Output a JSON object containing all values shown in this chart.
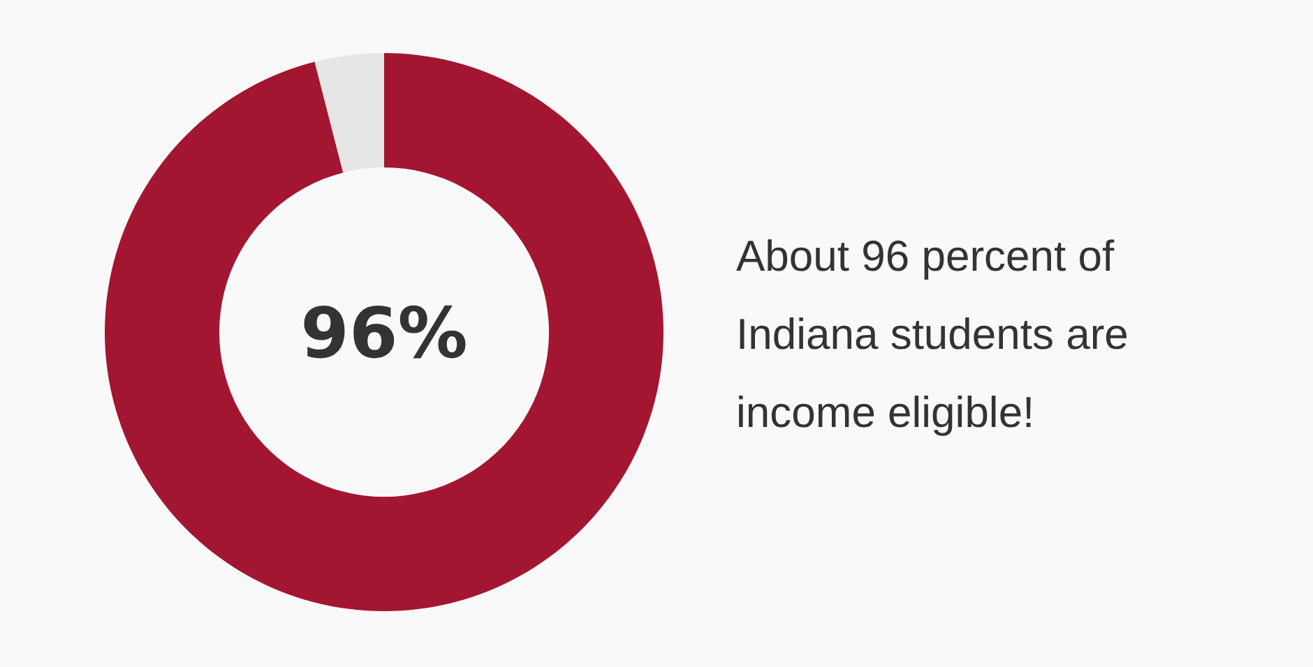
{
  "chart_data": {
    "type": "donut",
    "categories": [
      null,
      null
    ],
    "values": [
      96,
      4
    ],
    "colors": [
      "#a31631",
      "#e6e6e6"
    ],
    "value_labels": [
      "96%",
      null
    ],
    "annotations": [
      "About 96 percent of Indiana students are income eligible!"
    ]
  }
}
